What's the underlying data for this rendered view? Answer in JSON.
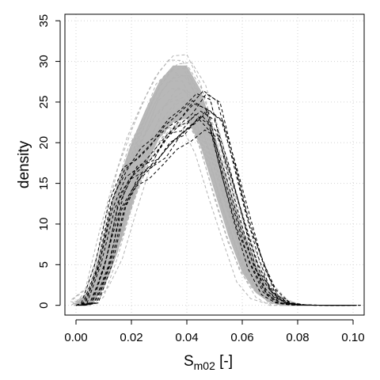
{
  "chart_data": {
    "type": "line",
    "title": "",
    "xlabel_main": "S",
    "xlabel_sub": "m02",
    "xlabel_unit": " [-]",
    "ylabel": "density",
    "xlim": [
      -0.004,
      0.104
    ],
    "ylim": [
      -1.2,
      35.8
    ],
    "x_ticks": [
      "0.00",
      "0.02",
      "0.04",
      "0.06",
      "0.08",
      "0.10"
    ],
    "y_ticks": [
      "0",
      "5",
      "10",
      "15",
      "20",
      "25",
      "30",
      "35"
    ],
    "grid": true,
    "colors": {
      "ensemble": "#b3b3b3",
      "band": "#b8b8b8",
      "observed": "#000000",
      "grid": "#d3d3d3"
    },
    "series": [
      {
        "role": "simulated-ensemble-envelope",
        "x": [
          0.0,
          0.005,
          0.01,
          0.015,
          0.02,
          0.025,
          0.03,
          0.035,
          0.04,
          0.045,
          0.05,
          0.055,
          0.06,
          0.065,
          0.07,
          0.075,
          0.08,
          0.085
        ],
        "lower": [
          0.0,
          0.0,
          2.0,
          6.5,
          12.0,
          17.0,
          20.5,
          22.5,
          23.0,
          19.5,
          14.0,
          8.5,
          4.0,
          1.5,
          0.3,
          0.0,
          0.0,
          0.0
        ],
        "upper": [
          0.2,
          2.0,
          8.5,
          15.0,
          20.0,
          24.0,
          27.5,
          29.5,
          29.5,
          26.5,
          21.0,
          15.0,
          9.5,
          5.0,
          2.0,
          0.5,
          0.1,
          0.0
        ],
        "mean": [
          0.05,
          0.8,
          5.0,
          10.5,
          16.0,
          20.5,
          24.0,
          26.0,
          25.8,
          23.0,
          17.5,
          11.5,
          6.5,
          3.0,
          0.9,
          0.2,
          0.0,
          0.0
        ]
      },
      {
        "role": "observed-curves",
        "x": [
          0.0,
          0.005,
          0.01,
          0.015,
          0.02,
          0.025,
          0.03,
          0.035,
          0.04,
          0.045,
          0.05,
          0.055,
          0.06,
          0.065,
          0.07,
          0.075,
          0.08,
          0.085,
          0.09,
          0.095,
          0.1
        ],
        "y": [
          0.0,
          0.3,
          5.0,
          12.5,
          16.0,
          17.5,
          19.5,
          21.5,
          23.0,
          24.5,
          23.5,
          17.0,
          10.5,
          5.0,
          1.5,
          0.3,
          0.05,
          0.02,
          0.01,
          0.01,
          0.01
        ]
      }
    ]
  }
}
